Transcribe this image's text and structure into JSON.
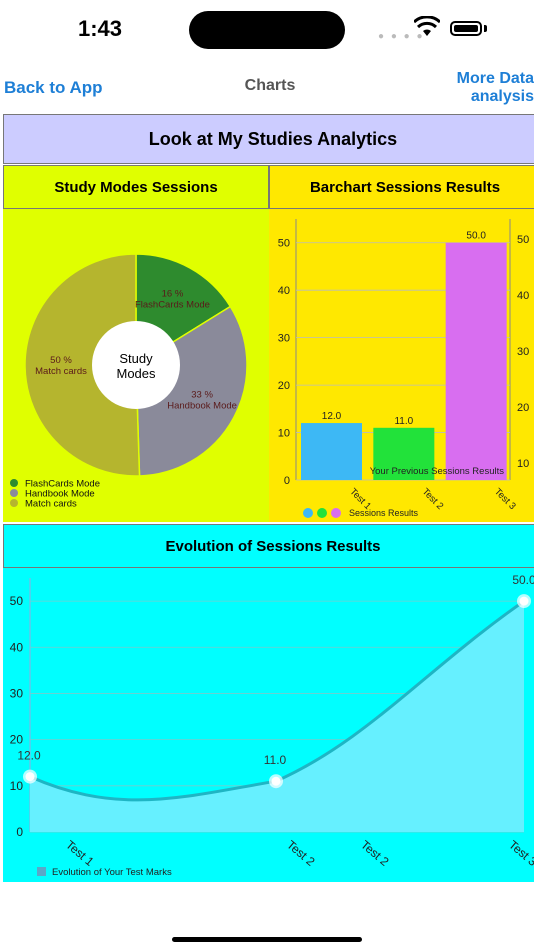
{
  "status_bar": {
    "time": "1:43"
  },
  "nav": {
    "back_label": "Back to App",
    "title": "Charts",
    "more_line1": "More Data",
    "more_line2": "analysis"
  },
  "main_title": "Look at My Studies Analytics",
  "pie_panel": {
    "title": "Study Modes Sessions",
    "center_line1": "Study",
    "center_line2": "Modes"
  },
  "bar_panel": {
    "title": "Barchart Sessions Results"
  },
  "evolution_panel": {
    "title": "Evolution of Sessions Results"
  },
  "colors": {
    "pie_panel_bg": "#e0ff00",
    "bar_panel_bg": "#ffe800",
    "evolution_panel_bg": "#00ffff",
    "header_bg": "#ccccff",
    "link": "#1e7fd6"
  },
  "chart_data": [
    {
      "type": "pie",
      "categories": [
        "FlashCards Mode",
        "Handbook Mode",
        "Match cards"
      ],
      "values": [
        16,
        33,
        50
      ],
      "slice_labels": [
        "16 %",
        "33 %",
        "50 %"
      ],
      "colors": [
        "#2e8b2e",
        "#8a8a9a",
        "#b5b52e"
      ],
      "legend": "bottom-left"
    },
    {
      "type": "bar",
      "categories": [
        "Test 1",
        "Test 2",
        "Test 3"
      ],
      "values": [
        12.0,
        11.0,
        50.0
      ],
      "value_labels": [
        "12.0",
        "11.0",
        "50.0"
      ],
      "colors": [
        "#3db8f5",
        "#22e23a",
        "#d86ef0"
      ],
      "ylim": [
        0,
        55
      ],
      "y_ticks": [
        0,
        10,
        20,
        30,
        40,
        50
      ],
      "right_ticks": [
        10,
        20,
        30,
        40,
        50
      ],
      "annotation": "Your Previous Sessions Results",
      "legend_label": "Sessions Results",
      "legend": "bottom"
    },
    {
      "type": "area",
      "x_tick_labels": [
        "Test 1",
        "Test 2",
        "Test 2",
        "Test 3"
      ],
      "x": [
        1,
        2,
        3
      ],
      "values": [
        12.0,
        11.0,
        50.0
      ],
      "value_labels": [
        "12.0",
        "11.0",
        "50.0"
      ],
      "ylim": [
        0,
        55
      ],
      "y_ticks": [
        0,
        10,
        20,
        30,
        40,
        50
      ],
      "legend_label": "Evolution of Your Test Marks",
      "legend": "bottom-left",
      "line_color": "#1fb5c4",
      "fill_color": "#66f0ff"
    }
  ]
}
